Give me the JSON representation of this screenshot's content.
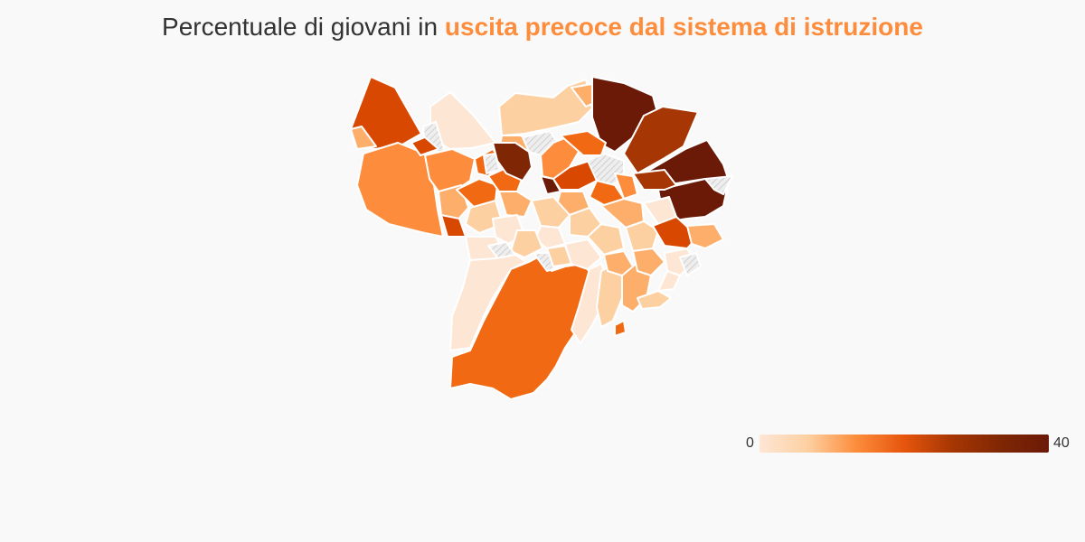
{
  "title": {
    "prefix": "Percentuale di giovani in ",
    "highlight": "uscita precoce dal sistema di istruzione",
    "highlight_color": "#fd8d3c"
  },
  "legend": {
    "min_label": "0",
    "max_label": "40",
    "colors": [
      "#fee6d5",
      "#fdd0a2",
      "#fd8d3c",
      "#e6550d",
      "#a63603",
      "#7f2704",
      "#6b1a08"
    ]
  },
  "map": {
    "no_data_color": "#e0e0e0",
    "border_color": "#ffffff",
    "color_scale": [
      "#fee6d5",
      "#fdd0a2",
      "#fdae6b",
      "#fd8d3c",
      "#f16913",
      "#d94801",
      "#a63603",
      "#7f2704",
      "#6b1a08"
    ]
  }
}
